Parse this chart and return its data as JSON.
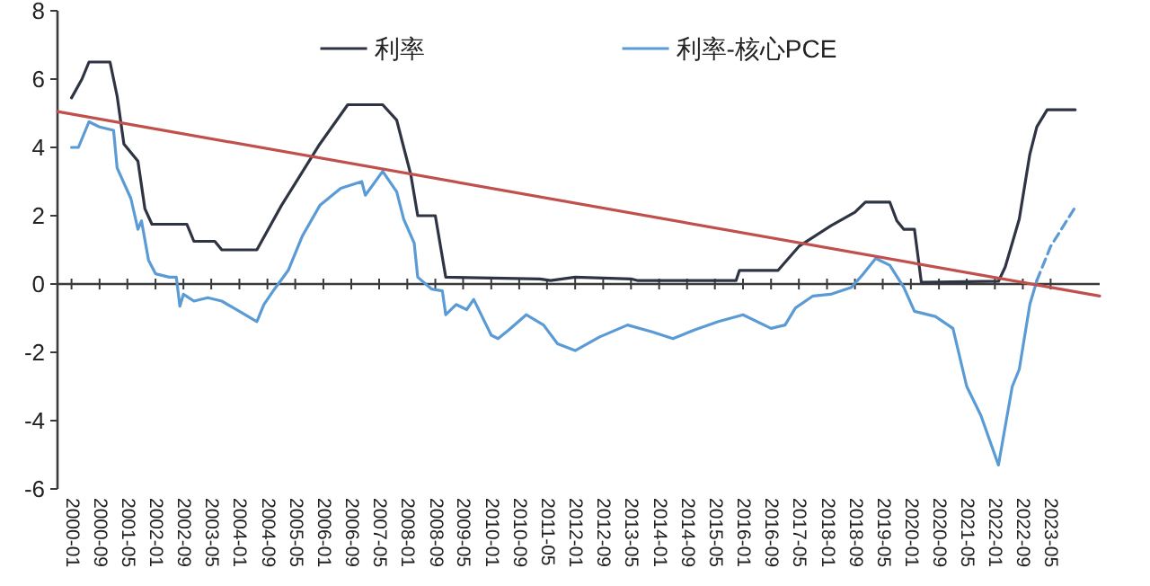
{
  "chart_data": {
    "type": "line",
    "legend": "top",
    "xlim": [
      "1999-09",
      "2024-07"
    ],
    "ylim": [
      -6,
      8
    ],
    "yticks": [
      -6,
      -4,
      -2,
      0,
      2,
      4,
      6,
      8
    ],
    "xticks": [
      "2000-01",
      "2000-09",
      "2001-05",
      "2002-01",
      "2002-09",
      "2003-05",
      "2004-01",
      "2004-09",
      "2005-05",
      "2006-01",
      "2006-09",
      "2007-05",
      "2008-01",
      "2008-09",
      "2009-05",
      "2010-01",
      "2010-09",
      "2011-05",
      "2012-01",
      "2012-09",
      "2013-05",
      "2014-01",
      "2014-09",
      "2015-05",
      "2016-01",
      "2016-09",
      "2017-05",
      "2018-01",
      "2018-09",
      "2019-05",
      "2020-01",
      "2020-09",
      "2021-05",
      "2022-01",
      "2022-09",
      "2023-05"
    ],
    "series": [
      {
        "name": "利率",
        "color": "#2e3444",
        "type": "line",
        "line_style": "solid",
        "x": [
          "2000-01",
          "2000-04",
          "2000-06",
          "2000-12",
          "2001-02",
          "2001-04",
          "2001-08",
          "2001-10",
          "2001-12",
          "2002-10",
          "2002-12",
          "2003-06",
          "2003-08",
          "2004-06",
          "2005-01",
          "2005-12",
          "2006-08",
          "2007-06",
          "2007-10",
          "2007-12",
          "2008-02",
          "2008-04",
          "2008-09",
          "2008-12",
          "2011-03",
          "2011-06",
          "2012-01",
          "2013-05",
          "2013-07",
          "2015-11",
          "2015-12",
          "2016-11",
          "2017-05",
          "2018-02",
          "2018-09",
          "2018-12",
          "2019-07",
          "2019-09",
          "2019-11",
          "2020-02",
          "2020-04",
          "2022-02",
          "2022-04",
          "2022-08",
          "2022-11",
          "2023-01",
          "2023-04",
          "2023-12"
        ],
        "values": [
          5.45,
          6.0,
          6.5,
          6.5,
          5.5,
          4.1,
          3.6,
          2.2,
          1.75,
          1.75,
          1.25,
          1.25,
          1.0,
          1.0,
          2.3,
          4.1,
          5.25,
          5.25,
          4.8,
          4.0,
          3.2,
          2.0,
          2.0,
          0.2,
          0.15,
          0.1,
          0.2,
          0.15,
          0.1,
          0.1,
          0.4,
          0.4,
          1.1,
          1.7,
          2.1,
          2.4,
          2.4,
          1.85,
          1.6,
          1.6,
          0.05,
          0.08,
          0.5,
          1.9,
          3.8,
          4.6,
          5.1,
          5.1
        ]
      },
      {
        "name": "利率-核心PCE",
        "color": "#5b9bd5",
        "type": "line",
        "line_style": "solid",
        "x": [
          "2000-01",
          "2000-03",
          "2000-06",
          "2000-09",
          "2001-01",
          "2001-02",
          "2001-06",
          "2001-08",
          "2001-09",
          "2001-11",
          "2002-01",
          "2002-05",
          "2002-07",
          "2002-08",
          "2002-09",
          "2002-12",
          "2003-04",
          "2003-08",
          "2004-01",
          "2004-06",
          "2004-08",
          "2004-11",
          "2005-03",
          "2005-07",
          "2005-12",
          "2006-06",
          "2006-12",
          "2007-01",
          "2007-06",
          "2007-10",
          "2007-12",
          "2008-03",
          "2008-04",
          "2008-08",
          "2008-11",
          "2008-12",
          "2009-03",
          "2009-06",
          "2009-08",
          "2010-01",
          "2010-03",
          "2010-06",
          "2010-11",
          "2011-04",
          "2011-08",
          "2012-01",
          "2012-08",
          "2013-04",
          "2013-11",
          "2014-05",
          "2014-11",
          "2015-06",
          "2016-01",
          "2016-09",
          "2017-01",
          "2017-04",
          "2017-09",
          "2018-02",
          "2018-08",
          "2018-11",
          "2019-03",
          "2019-07",
          "2019-11",
          "2020-02",
          "2020-08",
          "2021-01",
          "2021-05",
          "2021-09",
          "2022-02",
          "2022-06",
          "2022-08",
          "2022-11",
          "2023-01"
        ],
        "values": [
          4.0,
          4.0,
          4.75,
          4.6,
          4.5,
          3.4,
          2.5,
          1.6,
          1.85,
          0.7,
          0.3,
          0.2,
          0.2,
          -0.65,
          -0.3,
          -0.5,
          -0.4,
          -0.5,
          -0.8,
          -1.1,
          -0.6,
          -0.15,
          0.4,
          1.4,
          2.3,
          2.8,
          3.0,
          2.6,
          3.3,
          2.7,
          1.9,
          1.2,
          0.2,
          -0.15,
          -0.2,
          -0.9,
          -0.6,
          -0.75,
          -0.45,
          -1.5,
          -1.6,
          -1.35,
          -0.9,
          -1.2,
          -1.75,
          -1.95,
          -1.55,
          -1.2,
          -1.4,
          -1.6,
          -1.35,
          -1.1,
          -0.9,
          -1.3,
          -1.2,
          -0.7,
          -0.35,
          -0.3,
          -0.1,
          0.25,
          0.75,
          0.55,
          -0.1,
          -0.8,
          -0.95,
          -1.3,
          -3.0,
          -3.85,
          -5.3,
          -3.0,
          -2.5,
          -0.6,
          0.1
        ]
      },
      {
        "color": "#5b9bd5",
        "type": "line",
        "line_style": "dashed",
        "x": [
          "2023-01",
          "2023-05",
          "2023-12"
        ],
        "values": [
          0.1,
          1.1,
          2.25
        ]
      },
      {
        "color": "#c0504d",
        "type": "line",
        "line_style": "solid",
        "x": [
          "1999-09",
          "2024-07"
        ],
        "values": [
          5.05,
          -0.35
        ]
      }
    ]
  }
}
